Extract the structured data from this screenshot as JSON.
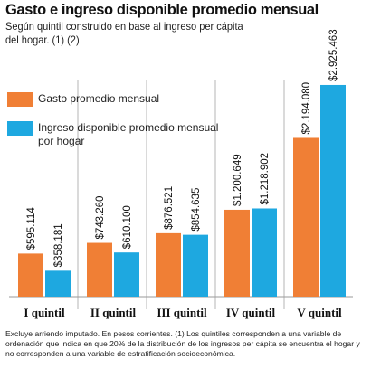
{
  "title": "Gasto e ingreso disponible promedio mensual",
  "subtitle": "Según quintil construido en base al ingreso per cápita del hogar. (1) (2)",
  "legend": [
    {
      "label": "Gasto promedio mensual",
      "color": "#f07f35"
    },
    {
      "label": "Ingreso disponible promedio mensual por hogar",
      "color": "#1ea8e0"
    }
  ],
  "footnote": "Excluye arriendo imputado. En pesos corrientes. (1) Los quintiles corresponden a una variable de ordenación que indica en que 20% de la distribución de los ingresos per cápita se encuentra el hogar y no corresponden a una variable de estratificación socioeconómica.",
  "chart_data": {
    "type": "bar",
    "title": "Gasto e ingreso disponible promedio mensual",
    "categories": [
      "I quintil",
      "II quintil",
      "III quintil",
      "IV quintil",
      "V quintil"
    ],
    "series": [
      {
        "name": "Gasto promedio mensual",
        "color": "#f07f35",
        "values": [
          595114,
          743260,
          876521,
          1200649,
          2194080
        ],
        "labels": [
          "$595.114",
          "$743.260",
          "$876.521",
          "$1.200.649",
          "$2.194.080"
        ]
      },
      {
        "name": "Ingreso disponible promedio mensual por hogar",
        "color": "#1ea8e0",
        "values": [
          358181,
          610100,
          854635,
          1218902,
          2925463
        ],
        "labels": [
          "$358.181",
          "$610.100",
          "$854.635",
          "$1.218.902",
          "$2.925.463"
        ]
      }
    ],
    "ylim": [
      0,
      3000000
    ],
    "grid": true,
    "legend_position": "top-left"
  }
}
